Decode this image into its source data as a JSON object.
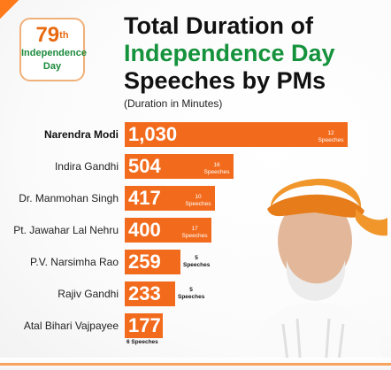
{
  "badge": {
    "number": "79",
    "suffix": "th",
    "line1": "Independence",
    "line2": "Day"
  },
  "title": {
    "line1": "Total Duration of",
    "line2": "Independence Day",
    "line3": "Speeches by PMs"
  },
  "unit_note": "(Duration in Minutes)",
  "colors": {
    "bar": "#f26b1d",
    "accent_green": "#15923c",
    "accent_orange": "#e86a10"
  },
  "chart_data": {
    "type": "bar",
    "orientation": "horizontal",
    "title": "Total Duration of Independence Day Speeches by PMs",
    "unit": "(Duration in Minutes)",
    "categories": [
      "Narendra Modi",
      "Indira Gandhi",
      "Dr. Manmohan Singh",
      "Pt. Jawahar Lal Nehru",
      "P.V. Narsimha Rao",
      "Rajiv Gandhi",
      "Atal Bihari Vajpayee"
    ],
    "values": [
      1030,
      504,
      417,
      400,
      259,
      233,
      177
    ],
    "value_labels": [
      "1,030",
      "504",
      "417",
      "400",
      "259",
      "233",
      "177"
    ],
    "speeches": [
      12,
      16,
      10,
      17,
      5,
      5,
      6
    ],
    "speech_labels": [
      "12 Speeches",
      "16 Speeches",
      "10 Speeches",
      "17 Speeches",
      "5 Speeches",
      "5 Speeches",
      "6 Speeches"
    ],
    "highlight": "Narendra Modi"
  },
  "portrait": {
    "icon": "person-portrait-icon"
  }
}
